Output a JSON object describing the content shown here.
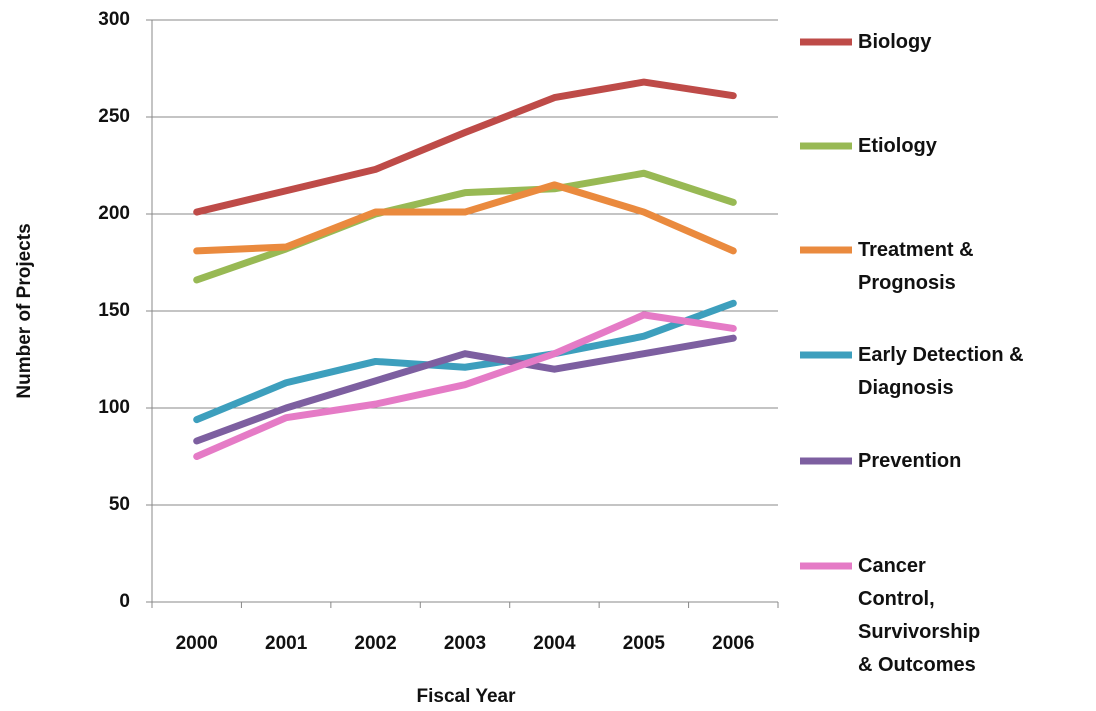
{
  "chart_data": {
    "type": "line",
    "x_label": "Fiscal Year",
    "y_label": "Number of Projects",
    "categories": [
      "2000",
      "2001",
      "2002",
      "2003",
      "2004",
      "2005",
      "2006"
    ],
    "series": [
      {
        "name": "Biology",
        "color": "#be4b48",
        "values": [
          201,
          212,
          223,
          242,
          260,
          268,
          261
        ]
      },
      {
        "name": "Etiology",
        "color": "#98b954",
        "values": [
          166,
          182,
          200,
          211,
          213,
          221,
          206
        ]
      },
      {
        "name": "Treatment & Prognosis",
        "color": "#ea8a3e",
        "values": [
          181,
          183,
          201,
          201,
          215,
          201,
          181
        ]
      },
      {
        "name": "Early Detection & Diagnosis",
        "color": "#3d9fbd",
        "values": [
          94,
          113,
          124,
          121,
          128,
          137,
          154
        ]
      },
      {
        "name": "Prevention",
        "color": "#7d5fa0",
        "values": [
          83,
          100,
          114,
          128,
          120,
          128,
          136
        ]
      },
      {
        "name": "Cancer Control, Survivorship & Outcomes",
        "color": "#e57bc6",
        "values": [
          75,
          95,
          102,
          112,
          128,
          148,
          141
        ]
      }
    ],
    "ylim": [
      0,
      300
    ],
    "yticks": [
      0,
      50,
      100,
      150,
      200,
      250,
      300
    ],
    "grid": true,
    "legend": "right"
  }
}
